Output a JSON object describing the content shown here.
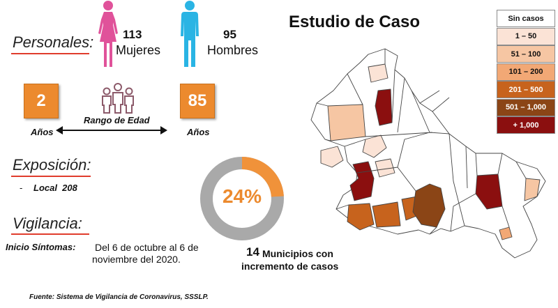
{
  "personal": {
    "label": "Personales:",
    "women": {
      "count": "113",
      "label": "Mujeres",
      "icon": "female-figure-icon",
      "color": "#e0529a"
    },
    "men": {
      "count": "95",
      "label": "Hombres",
      "icon": "male-figure-icon",
      "color": "#2ab4e4"
    }
  },
  "age": {
    "min": "2",
    "max": "85",
    "min_unit": "Años",
    "max_unit": "Años",
    "range_label": "Rango de Edad",
    "box_color": "#ec8a2e"
  },
  "exposure": {
    "label": "Exposición:",
    "bullet": "-",
    "item": "Local  208"
  },
  "surveillance": {
    "label": "Vigilancia:",
    "symptoms_label": "Inicio Síntomas:",
    "symptoms_line1": "Del 6 de octubre al 6 de",
    "symptoms_line2": "noviembre del 2020."
  },
  "donut": {
    "percent_label": "24%",
    "fraction": 0.24,
    "fill_color": "#f0923a",
    "track_color": "#a9a9a9",
    "count": "14",
    "caption_line1": "Municipios con",
    "caption_line2": "incremento de casos"
  },
  "map": {
    "title": "Estudio de Caso"
  },
  "legend": [
    {
      "label": "Sin casos",
      "color": "#ffffff"
    },
    {
      "label": "1 – 50",
      "color": "#fbe3d6"
    },
    {
      "label": "51 – 100",
      "color": "#f6c6a3"
    },
    {
      "label": "101 – 200",
      "color": "#f2a875"
    },
    {
      "label": "201 – 500",
      "color": "#c7631d"
    },
    {
      "label": "501 – 1,000",
      "color": "#8b4516"
    },
    {
      "label": "+ 1,000",
      "color": "#8b0f0f"
    }
  ],
  "source": "Fuente: Sistema de Vigilancia de Coronavirus, SSSLP.",
  "colors": {
    "accent_line": "#e03c2c"
  }
}
